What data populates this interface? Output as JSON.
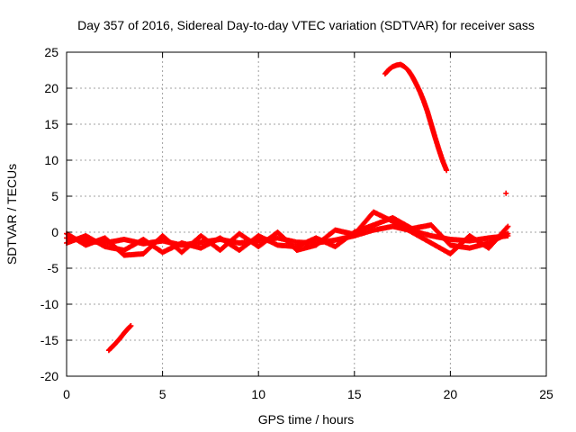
{
  "chart_data": {
    "type": "scatter",
    "title": "Day 357 of 2016, Sidereal Day-to-day VTEC variation (SDTVAR) for receiver sass",
    "xlabel": "GPS time / hours",
    "ylabel": "SDTVAR / TECUs",
    "xlim": [
      0,
      25
    ],
    "ylim": [
      -20,
      25
    ],
    "xticks": [
      "0",
      "5",
      "10",
      "15",
      "20",
      "25"
    ],
    "yticks": [
      "25",
      "20",
      "15",
      "10",
      "5",
      "0",
      "-5",
      "-10",
      "-15",
      "-20"
    ],
    "grid": true,
    "marker": "+",
    "color": "#ff0000",
    "series": [
      {
        "name": "arc-low",
        "x": [
          2.2,
          2.5,
          2.8,
          3.0,
          3.2,
          3.35
        ],
        "y": [
          -16.4,
          -15.6,
          -14.7,
          -14.0,
          -13.4,
          -13.0
        ]
      },
      {
        "name": "arc-high",
        "x": [
          16.6,
          16.8,
          17.0,
          17.2,
          17.4,
          17.6,
          17.8,
          18.0,
          18.2,
          18.4,
          18.6,
          18.8,
          19.0,
          19.2,
          19.4,
          19.6,
          19.8
        ],
        "y": [
          22.0,
          22.6,
          23.0,
          23.2,
          23.3,
          23.0,
          22.5,
          21.7,
          20.7,
          19.6,
          18.3,
          16.8,
          15.0,
          13.2,
          11.5,
          9.9,
          8.6
        ]
      },
      {
        "name": "outlier",
        "x": [
          22.9
        ],
        "y": [
          5.4
        ]
      },
      {
        "name": "band-1",
        "x": [
          0,
          1,
          2,
          3,
          4,
          5,
          6,
          7,
          8,
          9,
          10,
          11,
          12,
          13,
          14,
          15,
          16,
          17,
          18,
          19,
          20,
          21,
          22,
          23
        ],
        "y": [
          -0.8,
          -1.2,
          -1.5,
          -1.0,
          -1.6,
          -1.2,
          -1.8,
          -1.4,
          -1.0,
          -1.5,
          -1.2,
          -0.8,
          -1.4,
          -1.5,
          -1.1,
          -0.5,
          0.3,
          0.8,
          0.2,
          -0.5,
          -1.0,
          -1.2,
          -0.8,
          -0.5
        ]
      },
      {
        "name": "band-2",
        "x": [
          0,
          1,
          2,
          3,
          4,
          5,
          6,
          7,
          8,
          9,
          10,
          11,
          12,
          13,
          14,
          15,
          16,
          17,
          18,
          19,
          20,
          21,
          22,
          23
        ],
        "y": [
          -1.5,
          -0.5,
          -2.0,
          -2.5,
          -1.0,
          -2.8,
          -1.5,
          -2.2,
          -0.8,
          -2.5,
          -0.5,
          -1.8,
          -2.0,
          -0.8,
          -2.0,
          0.0,
          1.0,
          2.0,
          0.5,
          1.0,
          -1.8,
          -2.2,
          -1.5,
          -0.2
        ]
      },
      {
        "name": "band-3",
        "x": [
          0,
          1,
          2,
          3,
          4,
          5,
          6,
          7,
          8,
          9,
          10,
          11,
          12,
          13,
          14,
          15,
          16,
          17,
          18,
          19,
          20,
          21,
          22,
          23
        ],
        "y": [
          -0.2,
          -1.8,
          -0.8,
          -3.2,
          -3.0,
          -0.5,
          -2.8,
          -0.5,
          -2.5,
          -0.2,
          -2.0,
          0.0,
          -2.5,
          -1.8,
          0.3,
          -0.3,
          2.8,
          1.5,
          0.0,
          -1.5,
          -3.0,
          -0.5,
          -2.2,
          0.8
        ]
      }
    ]
  }
}
